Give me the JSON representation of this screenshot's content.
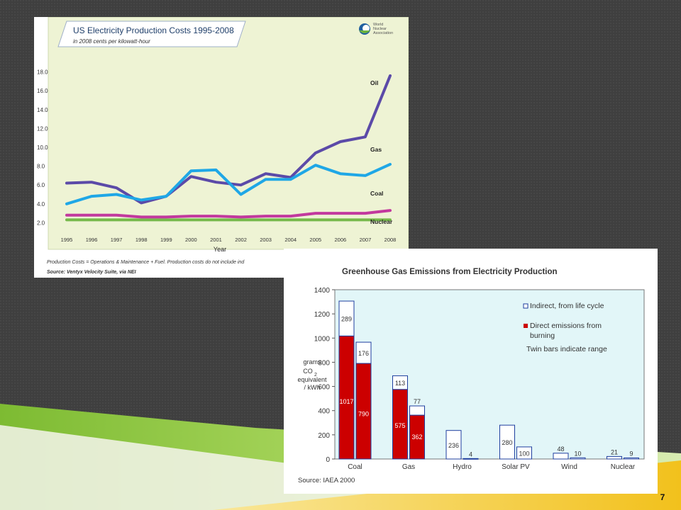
{
  "page": {
    "number": "7"
  },
  "colors": {
    "background": "#3c3c3c",
    "green_band": "#8bc43f",
    "yellow_band": "#f2c11c",
    "chart1_background": "#eef3d4",
    "chart2_background": "#e2f6f8",
    "oil": "#5b4aa8",
    "gas": "#1fa7e6",
    "coal": "#c2399e",
    "nuclear": "#75b94a",
    "direct_bar": "#cc0000"
  },
  "chart_data": [
    {
      "type": "line",
      "title": "US Electricity Production Costs 1995-2008",
      "subtitle": "in 2008 cents per kilowatt-hour",
      "xlabel": "Year",
      "ylabel": "",
      "ylim": [
        0,
        19
      ],
      "grid": false,
      "logo_text": [
        "World",
        "Nuclear",
        "Association"
      ],
      "x": [
        "1995",
        "1996",
        "1997",
        "1998",
        "1999",
        "2000",
        "2001",
        "2002",
        "2003",
        "2004",
        "2005",
        "2006",
        "2007",
        "2008"
      ],
      "y_ticks": [
        "2.0",
        "4.0",
        "6.0",
        "8.0",
        "10.0",
        "12.0",
        "14.0",
        "16.0",
        "18.0"
      ],
      "series": [
        {
          "name": "Oil",
          "values": [
            6.2,
            6.3,
            5.7,
            4.1,
            4.8,
            6.9,
            6.3,
            6.0,
            7.2,
            6.8,
            9.4,
            10.6,
            11.1,
            17.6
          ]
        },
        {
          "name": "Gas",
          "values": [
            4.0,
            4.8,
            5.0,
            4.4,
            4.8,
            7.5,
            7.6,
            5.0,
            6.6,
            6.6,
            8.1,
            7.2,
            7.0,
            8.2
          ]
        },
        {
          "name": "Coal",
          "values": [
            2.8,
            2.8,
            2.8,
            2.6,
            2.6,
            2.7,
            2.7,
            2.6,
            2.7,
            2.7,
            3.0,
            3.0,
            3.0,
            3.3
          ]
        },
        {
          "name": "Nuclear",
          "values": [
            2.3,
            2.3,
            2.3,
            2.3,
            2.3,
            2.3,
            2.3,
            2.3,
            2.3,
            2.3,
            2.3,
            2.3,
            2.3,
            2.3
          ]
        }
      ],
      "footnote": "Production Costs = Operations & Maintenance + Fuel. Production costs do not include ind",
      "source": "Source: Ventyx Velocity Suite, via NEI"
    },
    {
      "type": "bar",
      "title": "Greenhouse Gas Emissions from Electricity Production",
      "ylabel_lines": [
        "grams",
        "CO",
        "equivalent",
        "/ kWh"
      ],
      "ylabel_subscript": "2",
      "ylim": [
        0,
        1400
      ],
      "y_ticks": [
        "0",
        "200",
        "400",
        "600",
        "800",
        "1000",
        "1200",
        "1400"
      ],
      "categories": [
        "Coal",
        "Gas",
        "Hydro",
        "Solar PV",
        "Wind",
        "Nuclear"
      ],
      "series": [
        {
          "name": "Direct emissions from burning",
          "values": [
            [
              1017,
              790
            ],
            [
              575,
              362
            ],
            [
              0,
              0
            ],
            [
              0,
              0
            ],
            [
              0,
              0
            ],
            [
              0,
              0
            ]
          ]
        },
        {
          "name": "Indirect, from life cycle",
          "values": [
            [
              289,
              176
            ],
            [
              113,
              77
            ],
            [
              236,
              4
            ],
            [
              280,
              100
            ],
            [
              48,
              10
            ],
            [
              21,
              9
            ]
          ]
        }
      ],
      "direct_labels": [
        [
          "1017",
          "790"
        ],
        [
          "575",
          "362"
        ],
        [
          "",
          ""
        ],
        [
          "",
          ""
        ],
        [
          "",
          ""
        ],
        [
          "",
          ""
        ]
      ],
      "indirect_labels": [
        [
          "289",
          "176"
        ],
        [
          "113",
          "77"
        ],
        [
          "236",
          "4"
        ],
        [
          "280",
          "100"
        ],
        [
          "48",
          "10"
        ],
        [
          "21",
          "9"
        ]
      ],
      "legend": {
        "indirect": "Indirect, from life cycle",
        "direct_lines": [
          "Direct emissions from",
          "burning"
        ],
        "note": "Twin bars indicate range"
      },
      "source": "Source: IAEA 2000"
    }
  ]
}
